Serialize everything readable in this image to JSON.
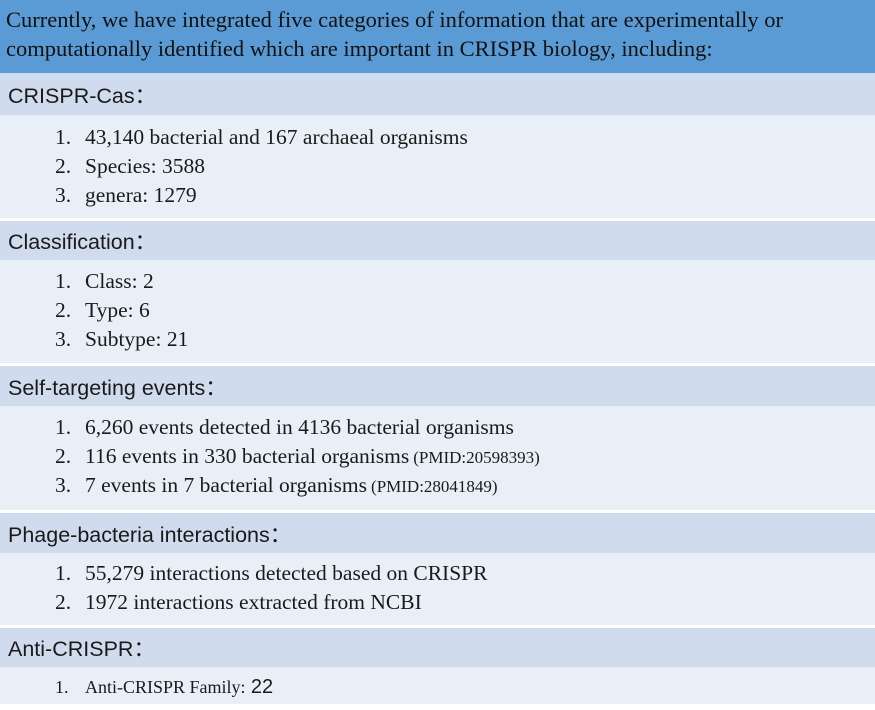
{
  "intro": {
    "line1": "Currently, we have integrated five categories of information that are experimentally or",
    "line2": "computationally identified which are important in CRISPR biology, including:"
  },
  "sections": [
    {
      "title": "CRISPR-Cas：",
      "items": [
        {
          "num": "1.",
          "text": "43,140 bacterial and 167 archaeal organisms"
        },
        {
          "num": "2.",
          "text": "Species: 3588"
        },
        {
          "num": "3.",
          "text": "genera: 1279"
        }
      ]
    },
    {
      "title": "Classification：",
      "items": [
        {
          "num": "1.",
          "text": "Class: 2"
        },
        {
          "num": "2.",
          "text": "Type: 6"
        },
        {
          "num": "3.",
          "text": "Subtype: 21"
        }
      ]
    },
    {
      "title": "Self-targeting events：",
      "items": [
        {
          "num": "1.",
          "text": "6,260 events detected in 4136 bacterial organisms"
        },
        {
          "num": "2.",
          "text": "116 events in 330 bacterial organisms",
          "ref": "(PMID:20598393)"
        },
        {
          "num": "3.",
          "text": "7 events in 7 bacterial organisms",
          "ref": "(PMID:28041849)"
        }
      ]
    },
    {
      "title": "Phage-bacteria interactions：",
      "items": [
        {
          "num": "1.",
          "text": "55,279 interactions detected based on CRISPR"
        },
        {
          "num": "2.",
          "text": "1972 interactions extracted from NCBI"
        }
      ]
    },
    {
      "title": "Anti-CRISPR：",
      "items": [
        {
          "num": "1.",
          "text": "Anti-CRISPR Family:",
          "value": "22"
        }
      ]
    }
  ],
  "colors": {
    "header_band": "#5b9bd5",
    "section_title_band": "#d0dcee",
    "section_body_band": "#e9eff7"
  }
}
